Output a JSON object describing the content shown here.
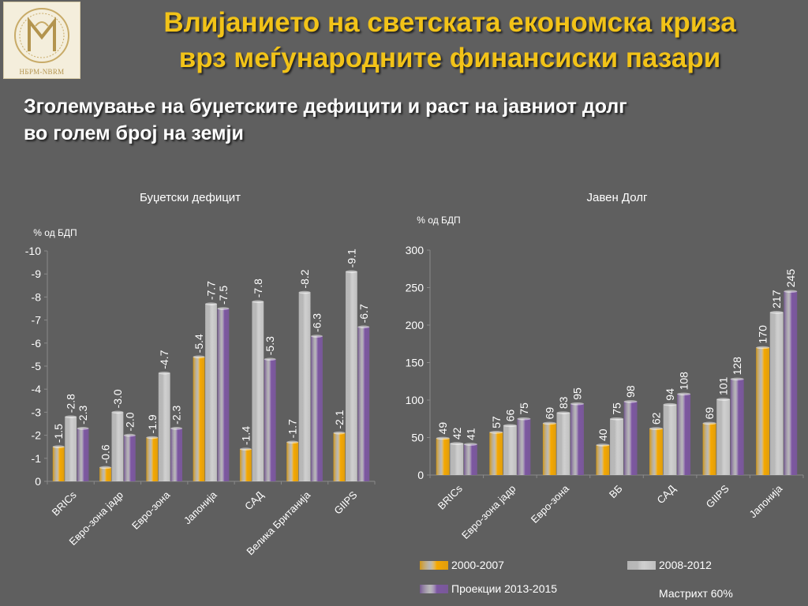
{
  "header": {
    "logo_text": "НБРМ-NBRM",
    "title_line1": "Влијанието на светската економска криза",
    "title_line2": "врз меѓународните финансиски пазари",
    "subtitle_line1": "Зголемување на буџетските дефицити и раст на јавниот долг",
    "subtitle_line2": "во голем број на земји"
  },
  "colors": {
    "series": [
      "#f5a800",
      "#cfcfcf",
      "#7d57a2"
    ],
    "axis": "#8a8a8a",
    "text": "#ffffff"
  },
  "legend": {
    "items": [
      "2000-2007",
      "2008-2012",
      "Проекции 2013-2015"
    ],
    "note": "Мастрихт 60%"
  },
  "chart_data": [
    {
      "type": "bar",
      "title": "Буџетски дефицит",
      "ylabel": "% од БДП",
      "ylim": [
        0,
        -10
      ],
      "yticks": [
        "-10",
        "-9",
        "-8",
        "-7",
        "-6",
        "-5",
        "-4",
        "-3",
        "-2",
        "-1",
        "0"
      ],
      "categories": [
        "BRICs",
        "Евро-зона јадр",
        "Евро-зона",
        "Јапонија",
        "САД",
        "Велика Британија",
        "GIIPS"
      ],
      "series": [
        {
          "name": "2000-2007",
          "values": [
            -1.5,
            -0.6,
            -1.9,
            -5.4,
            -1.4,
            -1.7,
            -2.1
          ],
          "labels": [
            "-1.5",
            "-0.6",
            "-1.9",
            "-5.4",
            "-1.4",
            "-1.7",
            "-2.1"
          ]
        },
        {
          "name": "2008-2012",
          "values": [
            -2.8,
            -3.0,
            -4.7,
            -7.7,
            -7.8,
            -8.2,
            -9.1
          ],
          "labels": [
            "-2.8",
            "-3.0",
            "-4.7",
            "-7.7",
            "-7.8",
            "-8.2",
            "-9.1"
          ]
        },
        {
          "name": "Проекции 2013-2015",
          "values": [
            -2.3,
            -2.0,
            -2.3,
            -7.5,
            -5.3,
            -6.3,
            -6.7
          ],
          "labels": [
            "-2.3",
            "-2.0",
            "-2.3",
            "-7.5",
            "-5.3",
            "-6.3",
            "-6.7"
          ]
        }
      ],
      "grid": false
    },
    {
      "type": "bar",
      "title": "Јавен Долг",
      "ylabel": "% од БДП",
      "ylim": [
        0,
        300
      ],
      "yticks": [
        "0",
        "50",
        "100",
        "150",
        "200",
        "250",
        "300"
      ],
      "categories": [
        "BRICs",
        "Евро-зона јадр",
        "Евро-зона",
        "ВБ",
        "САД",
        "GIIPS",
        "Јапонија"
      ],
      "series": [
        {
          "name": "2000-2007",
          "values": [
            49,
            57,
            69,
            40,
            62,
            69,
            170
          ],
          "labels": [
            "49",
            "57",
            "69",
            "40",
            "62",
            "69",
            "170"
          ]
        },
        {
          "name": "2008-2012",
          "values": [
            42,
            66,
            83,
            75,
            94,
            101,
            217
          ],
          "labels": [
            "42",
            "66",
            "83",
            "75",
            "94",
            "101",
            "217"
          ]
        },
        {
          "name": "Проекции 2013-2015",
          "values": [
            41,
            75,
            95,
            98,
            108,
            128,
            245
          ],
          "labels": [
            "41",
            "75",
            "95",
            "98",
            "108",
            "128",
            "245"
          ]
        }
      ],
      "grid": false
    }
  ]
}
